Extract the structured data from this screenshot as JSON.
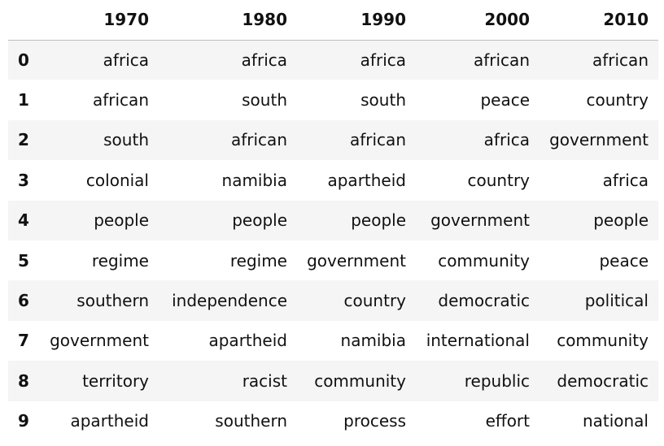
{
  "table": {
    "index_header": "",
    "columns": [
      "1970",
      "1980",
      "1990",
      "2000",
      "2010"
    ],
    "rows": [
      {
        "index": "0",
        "cells": [
          "africa",
          "africa",
          "africa",
          "african",
          "african"
        ]
      },
      {
        "index": "1",
        "cells": [
          "african",
          "south",
          "south",
          "peace",
          "country"
        ]
      },
      {
        "index": "2",
        "cells": [
          "south",
          "african",
          "african",
          "africa",
          "government"
        ]
      },
      {
        "index": "3",
        "cells": [
          "colonial",
          "namibia",
          "apartheid",
          "country",
          "africa"
        ]
      },
      {
        "index": "4",
        "cells": [
          "people",
          "people",
          "people",
          "government",
          "people"
        ]
      },
      {
        "index": "5",
        "cells": [
          "regime",
          "regime",
          "government",
          "community",
          "peace"
        ]
      },
      {
        "index": "6",
        "cells": [
          "southern",
          "independence",
          "country",
          "democratic",
          "political"
        ]
      },
      {
        "index": "7",
        "cells": [
          "government",
          "apartheid",
          "namibia",
          "international",
          "community"
        ]
      },
      {
        "index": "8",
        "cells": [
          "territory",
          "racist",
          "community",
          "republic",
          "democratic"
        ]
      },
      {
        "index": "9",
        "cells": [
          "apartheid",
          "southern",
          "process",
          "effort",
          "national"
        ]
      }
    ]
  }
}
